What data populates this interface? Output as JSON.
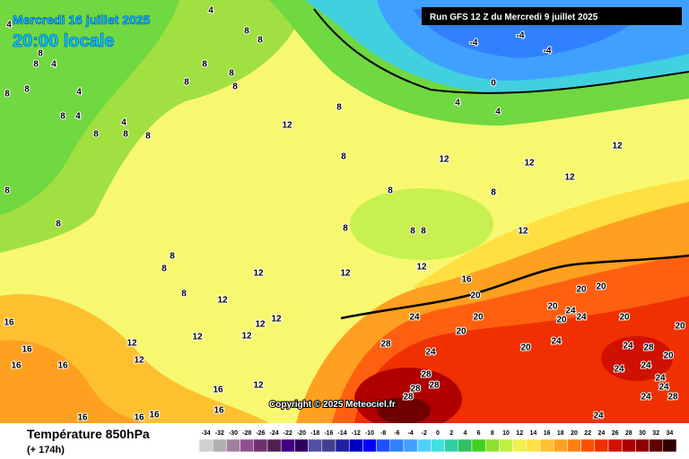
{
  "header": {
    "date": "Mercredi 16 juillet 2025",
    "time": "20:00 locale",
    "run": "Run GFS 12 Z du Mercredi 9 juillet 2025"
  },
  "map": {
    "copyright": "Copyright © 2025 Meteociel.fr",
    "labels": [
      4,
      4,
      8,
      4,
      8,
      4,
      4,
      8,
      8,
      8,
      8,
      4,
      8,
      8,
      8,
      8,
      8,
      8,
      8,
      8,
      12,
      8,
      12,
      8,
      8,
      8,
      8,
      8,
      8,
      8,
      12,
      12,
      12,
      12,
      12,
      16,
      20,
      12,
      12,
      12,
      12,
      12,
      12,
      12,
      12,
      12,
      16,
      16,
      16,
      16,
      16,
      16,
      12,
      16,
      16,
      16,
      24,
      20,
      20,
      28,
      24,
      28,
      28,
      28,
      28,
      20,
      24,
      20,
      20,
      20,
      24,
      24,
      20,
      20,
      20,
      24,
      28,
      20,
      24,
      24,
      24,
      24,
      24,
      28,
      24,
      -4,
      -4,
      -4,
      0,
      4,
      4,
      8,
      8,
      8,
      8
    ]
  },
  "footer": {
    "title": "Température 850hPa",
    "lead": "(+ 174h)"
  },
  "scale": {
    "values": [
      -34,
      -32,
      -30,
      -28,
      -26,
      -24,
      -22,
      -20,
      -18,
      -16,
      -14,
      -12,
      -10,
      -8,
      -6,
      -4,
      -2,
      0,
      2,
      4,
      6,
      8,
      10,
      12,
      14,
      16,
      18,
      20,
      22,
      24,
      26,
      28,
      30,
      32,
      34
    ],
    "colors": [
      "#d0d0d0",
      "#b0b0b0",
      "#a080a0",
      "#905090",
      "#703070",
      "#502050",
      "#400080",
      "#300060",
      "#5050a0",
      "#404090",
      "#2020a0",
      "#0000c0",
      "#0000ff",
      "#2050ff",
      "#3080ff",
      "#40a0ff",
      "#50d0ff",
      "#40e0e0",
      "#30d0a0",
      "#30c060",
      "#40d020",
      "#90e030",
      "#c0f040",
      "#f0f050",
      "#ffe040",
      "#ffc030",
      "#ffa020",
      "#ff8010",
      "#ff5000",
      "#f03000",
      "#d01000",
      "#b00000",
      "#900000",
      "#600000",
      "#300000"
    ]
  }
}
